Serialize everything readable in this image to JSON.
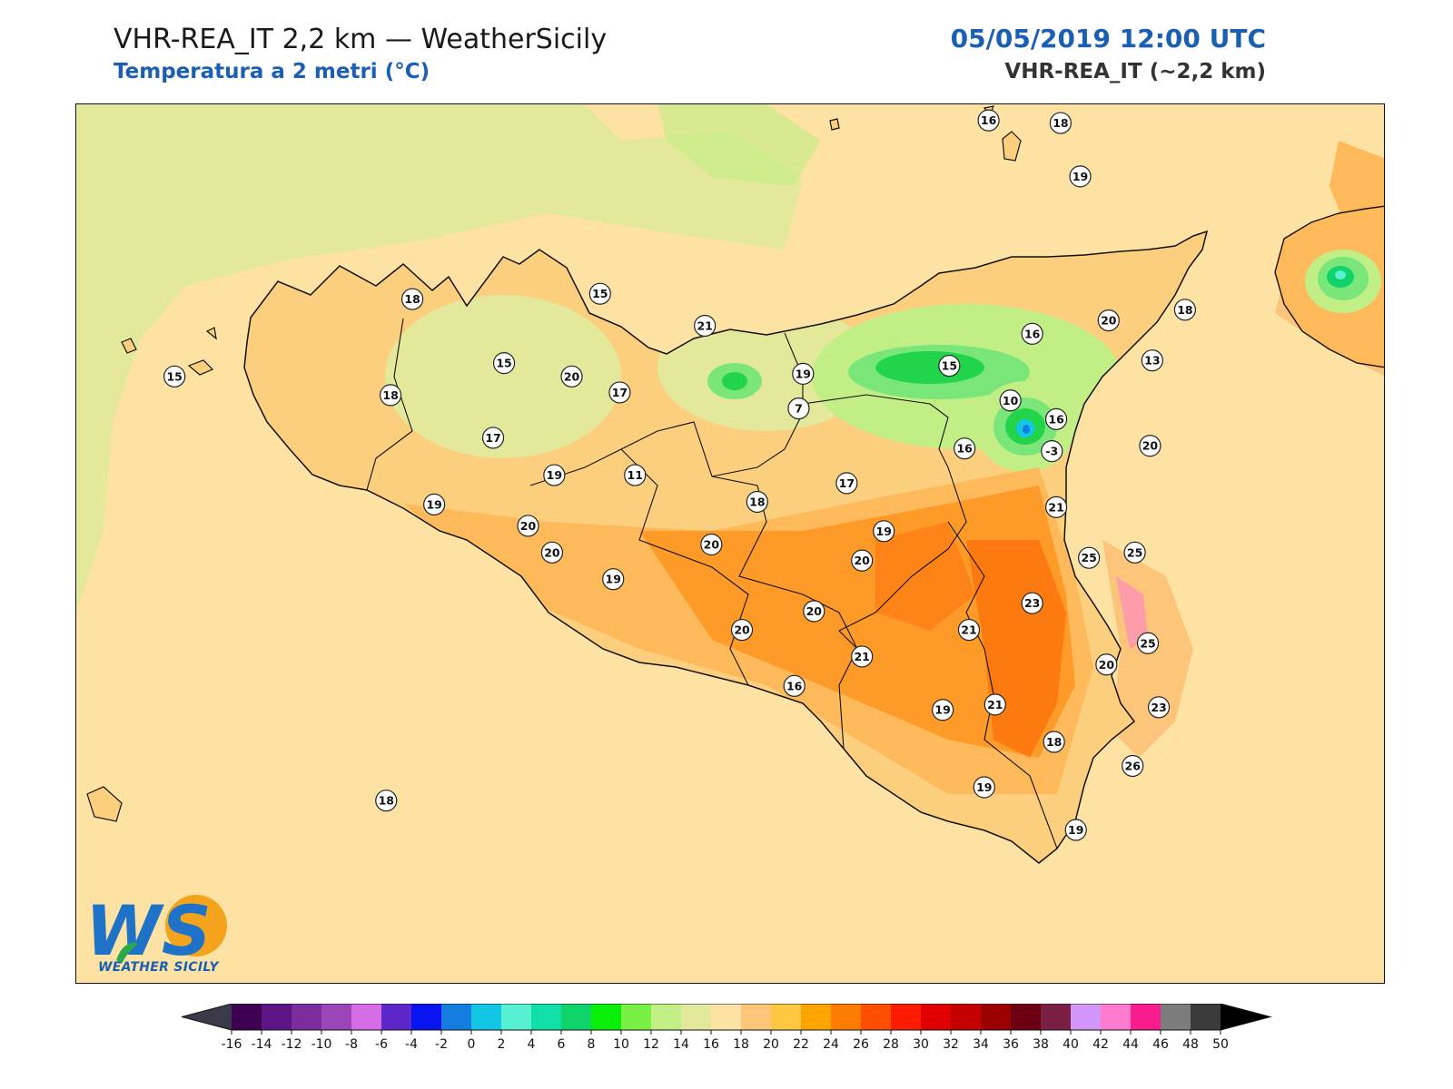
{
  "header": {
    "title": "VHR-REA_IT 2,2 km — WeatherSicily",
    "subtitle": "Temperatura a 2 metri (°C)",
    "datetime": "05/05/2019 12:00 UTC",
    "model": "VHR-REA_IT (~2,2 km)"
  },
  "logo": {
    "text": "WEATHER SICILY",
    "monogram": "WS"
  },
  "colors": {
    "sea": "#fde2a4",
    "land_base": "#fccf7e",
    "warm_22": "#fdb95a",
    "warm_24": "#fd9a28",
    "warm_26": "#fd7a10",
    "cool_16": "#e0e89a",
    "cool_14": "#c4ea86",
    "cool_10": "#7ae67a",
    "cool_8": "#22d44a",
    "coast": "#111111"
  },
  "colorbar": {
    "ticks": [
      "-16",
      "-14",
      "-12",
      "-10",
      "-8",
      "-6",
      "-4",
      "-2",
      "0",
      "2",
      "4",
      "6",
      "8",
      "10",
      "12",
      "14",
      "16",
      "18",
      "20",
      "22",
      "24",
      "26",
      "28",
      "30",
      "32",
      "34",
      "36",
      "38",
      "40",
      "42",
      "44",
      "46",
      "48",
      "50"
    ],
    "colors": [
      "#3d0052",
      "#5e1485",
      "#7b2d9c",
      "#9b45b8",
      "#d56ee6",
      "#5c26c9",
      "#0a14f0",
      "#157de0",
      "#14c6e6",
      "#57f0d2",
      "#10e0a5",
      "#10d46a",
      "#0aef0a",
      "#78f043",
      "#c2ee86",
      "#e3e89a",
      "#fde2a4",
      "#fcc57a",
      "#fec742",
      "#fea500",
      "#fe7c00",
      "#fe4e00",
      "#fe1b00",
      "#e00000",
      "#c40000",
      "#9c0000",
      "#6c0012",
      "#7b1e44",
      "#d295f8",
      "#fe7cd0",
      "#f81c8c",
      "#7c7c7c",
      "#3b3b3b"
    ]
  },
  "stations": [
    {
      "label": "16",
      "lon": 14.73,
      "lat": 38.99
    },
    {
      "label": "18",
      "lon": 15.06,
      "lat": 38.98
    },
    {
      "label": "19",
      "lon": 15.15,
      "lat": 38.78
    },
    {
      "label": "18",
      "lon": 12.09,
      "lat": 38.32
    },
    {
      "label": "15",
      "lon": 12.95,
      "lat": 38.34
    },
    {
      "label": "21",
      "lon": 13.43,
      "lat": 38.22
    },
    {
      "label": "20",
      "lon": 15.28,
      "lat": 38.24
    },
    {
      "label": "16",
      "lon": 14.93,
      "lat": 38.19
    },
    {
      "label": "18",
      "lon": 15.63,
      "lat": 38.28
    },
    {
      "label": "15",
      "lon": 11.0,
      "lat": 38.03
    },
    {
      "label": "15",
      "lon": 12.51,
      "lat": 38.08
    },
    {
      "label": "20",
      "lon": 12.82,
      "lat": 38.03
    },
    {
      "label": "19",
      "lon": 13.88,
      "lat": 38.04
    },
    {
      "label": "15",
      "lon": 14.55,
      "lat": 38.07
    },
    {
      "label": "13",
      "lon": 15.48,
      "lat": 38.09
    },
    {
      "label": "18",
      "lon": 11.99,
      "lat": 37.96
    },
    {
      "label": "17",
      "lon": 13.04,
      "lat": 37.97
    },
    {
      "label": "10",
      "lon": 14.83,
      "lat": 37.94
    },
    {
      "label": "7",
      "lon": 13.86,
      "lat": 37.91
    },
    {
      "label": "16",
      "lon": 15.04,
      "lat": 37.87
    },
    {
      "label": "17",
      "lon": 12.46,
      "lat": 37.8
    },
    {
      "label": "16",
      "lon": 14.62,
      "lat": 37.76
    },
    {
      "label": "-3",
      "lon": 15.02,
      "lat": 37.75
    },
    {
      "label": "20",
      "lon": 15.47,
      "lat": 37.77
    },
    {
      "label": "19",
      "lon": 12.74,
      "lat": 37.66
    },
    {
      "label": "11",
      "lon": 13.11,
      "lat": 37.66
    },
    {
      "label": "17",
      "lon": 14.08,
      "lat": 37.63
    },
    {
      "label": "19",
      "lon": 12.19,
      "lat": 37.55
    },
    {
      "label": "18",
      "lon": 13.67,
      "lat": 37.56
    },
    {
      "label": "21",
      "lon": 15.04,
      "lat": 37.54
    },
    {
      "label": "20",
      "lon": 12.62,
      "lat": 37.47
    },
    {
      "label": "19",
      "lon": 14.25,
      "lat": 37.45
    },
    {
      "label": "20",
      "lon": 13.46,
      "lat": 37.4
    },
    {
      "label": "20",
      "lon": 12.73,
      "lat": 37.37
    },
    {
      "label": "20",
      "lon": 14.15,
      "lat": 37.34
    },
    {
      "label": "25",
      "lon": 15.19,
      "lat": 37.35
    },
    {
      "label": "25",
      "lon": 15.4,
      "lat": 37.37
    },
    {
      "label": "19",
      "lon": 13.01,
      "lat": 37.27
    },
    {
      "label": "20",
      "lon": 13.93,
      "lat": 37.15
    },
    {
      "label": "23",
      "lon": 14.93,
      "lat": 37.18
    },
    {
      "label": "20",
      "lon": 13.6,
      "lat": 37.08
    },
    {
      "label": "21",
      "lon": 14.64,
      "lat": 37.08
    },
    {
      "label": "25",
      "lon": 15.46,
      "lat": 37.03
    },
    {
      "label": "21",
      "lon": 14.15,
      "lat": 36.98
    },
    {
      "label": "20",
      "lon": 15.27,
      "lat": 36.95
    },
    {
      "label": "16",
      "lon": 13.84,
      "lat": 36.87
    },
    {
      "label": "21",
      "lon": 14.76,
      "lat": 36.8
    },
    {
      "label": "23",
      "lon": 15.51,
      "lat": 36.79
    },
    {
      "label": "19",
      "lon": 14.52,
      "lat": 36.78
    },
    {
      "label": "18",
      "lon": 15.03,
      "lat": 36.66
    },
    {
      "label": "26",
      "lon": 15.39,
      "lat": 36.57
    },
    {
      "label": "19",
      "lon": 14.71,
      "lat": 36.49
    },
    {
      "label": "18",
      "lon": 11.97,
      "lat": 36.44
    },
    {
      "label": "19",
      "lon": 15.13,
      "lat": 36.33
    }
  ]
}
